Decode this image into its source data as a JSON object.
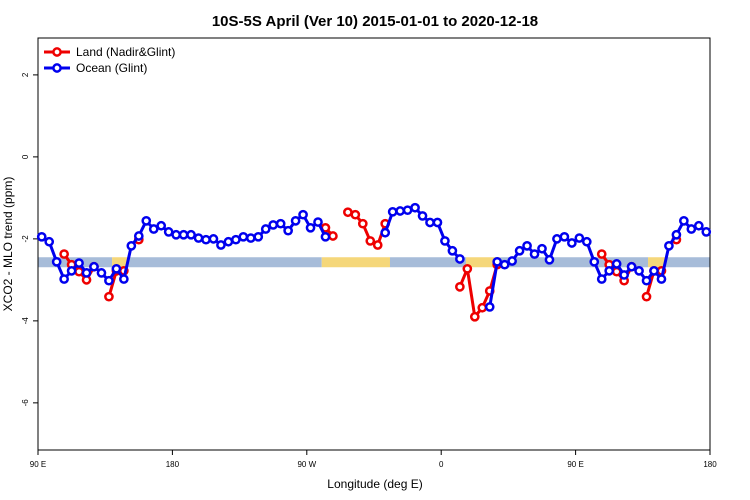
{
  "chart_data": {
    "type": "line",
    "title": "10S-5S April (Ver 10)   2015-01-01 to 2020-12-18",
    "x_label": "Longitude (deg E)",
    "y_label": "XCO2 - MLO trend (ppm)",
    "xlim": [
      90,
      540
    ],
    "ylim": [
      -7.15,
      2.9
    ],
    "xticks": [
      {
        "value": 90,
        "label": "90 E"
      },
      {
        "value": 180,
        "label": "180"
      },
      {
        "value": 270,
        "label": "90 W"
      },
      {
        "value": 360,
        "label": "0"
      },
      {
        "value": 450,
        "label": "90 E"
      },
      {
        "value": 540,
        "label": "180"
      }
    ],
    "yticks": [
      2,
      0,
      -2,
      -4,
      -6
    ],
    "legend": "top-left",
    "band": {
      "y": -2.57,
      "segments": [
        {
          "from": 90,
          "to": 139.6,
          "color": "#a7bcd9"
        },
        {
          "from": 139.6,
          "to": 150,
          "color": "#f5d77a"
        },
        {
          "from": 150,
          "to": 280,
          "color": "#a7bcd9"
        },
        {
          "from": 280,
          "to": 325.7,
          "color": "#f5d77a"
        },
        {
          "from": 325.7,
          "to": 376.6,
          "color": "#a7bcd9"
        },
        {
          "from": 376.6,
          "to": 399.4,
          "color": "#f5d77a"
        },
        {
          "from": 399.4,
          "to": 498.5,
          "color": "#a7bcd9"
        },
        {
          "from": 498.5,
          "to": 509.9,
          "color": "#f5d77a"
        },
        {
          "from": 509.9,
          "to": 540,
          "color": "#a7bcd9"
        }
      ]
    },
    "x": [
      92.5,
      97.5,
      102.5,
      107.5,
      112.5,
      117.5,
      122.5,
      127.5,
      132.5,
      137.5,
      142.5,
      147.5,
      152.5,
      157.5,
      162.5,
      167.5,
      172.5,
      177.5,
      182.5,
      187.5,
      192.5,
      197.5,
      202.5,
      207.5,
      212.5,
      217.5,
      222.5,
      227.5,
      232.5,
      237.5,
      242.5,
      247.5,
      252.5,
      257.5,
      262.5,
      267.5,
      272.5,
      277.5,
      282.5,
      287.5,
      292.5,
      297.5,
      302.5,
      307.5,
      312.5,
      317.5,
      322.5,
      327.5,
      332.5,
      337.5,
      342.5,
      347.5,
      352.5,
      357.5,
      362.5,
      367.5,
      372.5,
      377.5,
      382.5,
      387.5,
      392.5,
      397.5,
      402.5,
      407.5,
      412.5,
      417.5,
      422.5,
      427.5,
      432.5,
      437.5,
      442.5,
      447.5,
      452.5,
      457.5,
      462.5,
      467.5,
      472.5,
      477.5,
      482.5,
      487.5,
      492.5,
      497.5,
      502.5,
      507.5,
      512.5,
      517.5,
      522.5,
      527.5,
      532.5,
      537.5
    ],
    "series": [
      {
        "name": "Land (Nadir&Glint)",
        "color": "#ee0000",
        "values": [
          null,
          null,
          null,
          -2.37,
          -2.63,
          -2.8,
          -3.0,
          -2.68,
          null,
          -3.41,
          -2.78,
          -2.78,
          null,
          -2.02,
          null,
          null,
          null,
          null,
          null,
          null,
          null,
          null,
          null,
          null,
          null,
          null,
          null,
          null,
          null,
          null,
          null,
          null,
          null,
          null,
          null,
          null,
          null,
          null,
          -1.73,
          -1.93,
          null,
          -1.35,
          -1.41,
          -1.63,
          -2.05,
          -2.15,
          -1.63,
          null,
          null,
          null,
          null,
          null,
          null,
          null,
          null,
          null,
          -3.17,
          -2.73,
          -3.9,
          -3.68,
          -3.27,
          -2.63,
          null,
          null,
          null,
          null,
          null,
          null,
          null,
          null,
          null,
          null,
          null,
          null,
          null,
          -2.37,
          -2.63,
          -2.8,
          -3.02,
          -2.68,
          null,
          -3.41,
          -2.78,
          -2.78,
          null,
          -2.02,
          null,
          null,
          null,
          null
        ]
      },
      {
        "name": "Ocean (Glint)",
        "color": "#0000ee",
        "values": [
          -1.95,
          -2.07,
          -2.56,
          -2.98,
          -2.78,
          -2.59,
          -2.83,
          -2.68,
          -2.83,
          -3.02,
          -2.73,
          -2.98,
          -2.17,
          -1.93,
          -1.56,
          -1.76,
          -1.68,
          -1.83,
          -1.9,
          -1.9,
          -1.9,
          -1.98,
          -2.02,
          -2.0,
          -2.15,
          -2.07,
          -2.02,
          -1.95,
          -1.98,
          -1.95,
          -1.76,
          -1.66,
          -1.63,
          -1.8,
          -1.56,
          -1.41,
          -1.73,
          -1.59,
          -1.95,
          null,
          null,
          null,
          null,
          null,
          null,
          null,
          -1.85,
          -1.34,
          -1.32,
          -1.3,
          -1.24,
          -1.44,
          -1.6,
          -1.6,
          -2.05,
          -2.29,
          -2.49,
          null,
          null,
          null,
          -3.66,
          -2.56,
          -2.63,
          -2.54,
          -2.29,
          -2.17,
          -2.37,
          -2.24,
          -2.51,
          -2.0,
          -1.95,
          -2.1,
          -1.98,
          -2.07,
          -2.56,
          -2.98,
          -2.78,
          -2.61,
          -2.88,
          -2.68,
          -2.78,
          -3.02,
          -2.78,
          -2.98,
          -2.17,
          -1.9,
          -1.56,
          -1.76,
          -1.68,
          -1.83
        ]
      }
    ]
  }
}
